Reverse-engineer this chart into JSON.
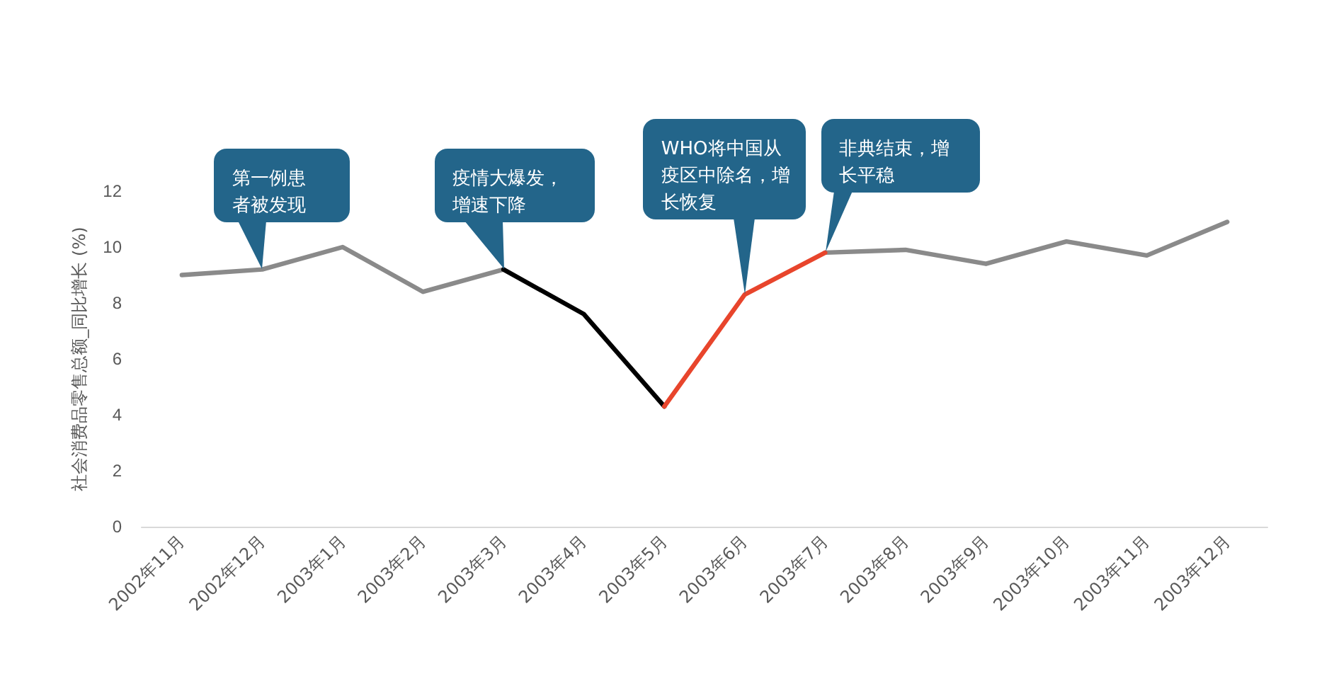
{
  "chart_data": {
    "type": "line",
    "ylabel": "社会消费品零售总额_同比增长 (%)",
    "categories": [
      "2002年11月",
      "2002年12月",
      "2003年1月",
      "2003年2月",
      "2003年3月",
      "2003年4月",
      "2003年5月",
      "2003年6月",
      "2003年7月",
      "2003年8月",
      "2003年9月",
      "2003年10月",
      "2003年11月",
      "2003年12月"
    ],
    "series": [
      {
        "color": "#8a8a8a",
        "values": [
          9.0,
          9.2,
          10.0,
          8.4,
          9.2,
          null,
          null,
          null,
          9.8,
          9.9,
          9.4,
          10.2,
          9.7,
          10.9
        ]
      },
      {
        "color": "#000000",
        "values": [
          null,
          null,
          null,
          null,
          9.2,
          7.6,
          4.3,
          null,
          null,
          null,
          null,
          null,
          null,
          null
        ]
      },
      {
        "color": "#e8452c",
        "values": [
          null,
          null,
          null,
          null,
          null,
          null,
          4.3,
          8.3,
          9.8,
          null,
          null,
          null,
          null,
          null
        ]
      }
    ],
    "ylim": [
      0,
      12
    ],
    "yticks": [
      0,
      2,
      4,
      6,
      8,
      10,
      12
    ],
    "annotations": [
      {
        "text": "第一例患者被发现",
        "x": "2002年12月",
        "y": 9.2
      },
      {
        "text": "疫情大爆发，增速下降",
        "x": "2003年3月",
        "y": 9.2
      },
      {
        "text": "WHO将中国从疫区中除名，增长恢复",
        "x": "2003年6月",
        "y": 8.3
      },
      {
        "text": "非典结束，增长平稳",
        "x": "2003年7月",
        "y": 9.8
      }
    ]
  }
}
